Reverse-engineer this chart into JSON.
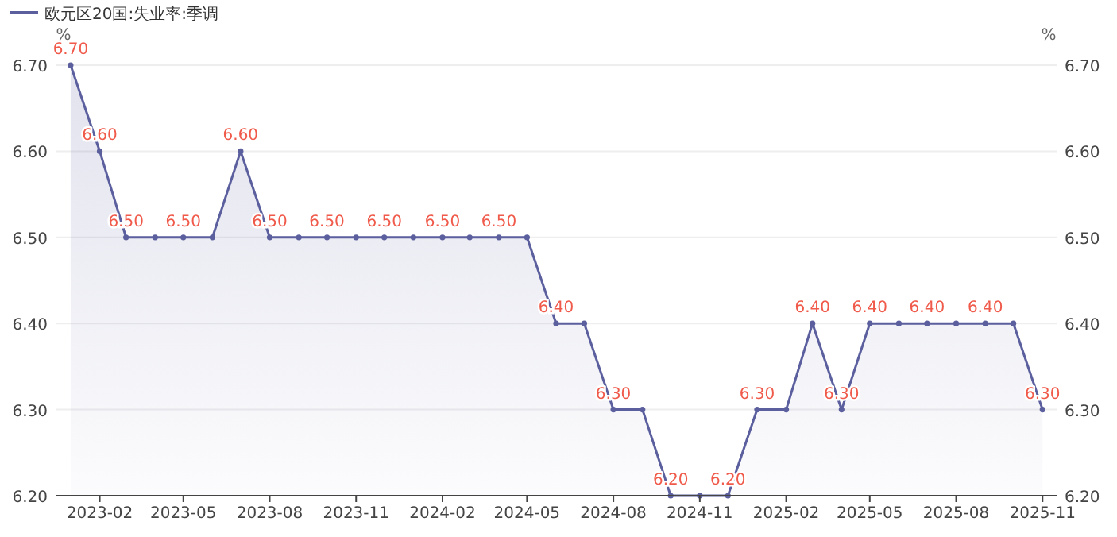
{
  "chart_data": {
    "type": "area",
    "legend": "top left",
    "ylabel": "%",
    "y2label": "%",
    "x": [
      "2023-01",
      "2023-02",
      "2023-03",
      "2023-04",
      "2023-05",
      "2023-06",
      "2023-07",
      "2023-08",
      "2023-09",
      "2023-10",
      "2023-11",
      "2023-12",
      "2024-01",
      "2024-02",
      "2024-03",
      "2024-04",
      "2024-05",
      "2024-06",
      "2024-07",
      "2024-08",
      "2024-09",
      "2024-10",
      "2024-11",
      "2024-12",
      "2025-01",
      "2025-02",
      "2025-03",
      "2025-04",
      "2025-05",
      "2025-06",
      "2025-07",
      "2025-08",
      "2025-09",
      "2025-10",
      "2025-11"
    ],
    "series": [
      {
        "name": "欧元区20国:失业率:季调",
        "color": "#5b5f9e",
        "values": [
          6.7,
          6.6,
          6.5,
          6.5,
          6.5,
          6.5,
          6.6,
          6.5,
          6.5,
          6.5,
          6.5,
          6.5,
          6.5,
          6.5,
          6.5,
          6.5,
          6.5,
          6.4,
          6.4,
          6.3,
          6.3,
          6.2,
          6.2,
          6.2,
          6.3,
          6.3,
          6.4,
          6.3,
          6.4,
          6.4,
          6.4,
          6.4,
          6.4,
          6.4,
          6.3
        ],
        "value_labels": [
          "6.70",
          "6.60",
          "6.50",
          null,
          "6.50",
          null,
          "6.60",
          "6.50",
          null,
          "6.50",
          null,
          "6.50",
          null,
          "6.50",
          null,
          "6.50",
          null,
          "6.40",
          null,
          "6.30",
          null,
          "6.20",
          null,
          "6.20",
          "6.30",
          null,
          "6.40",
          "6.30",
          "6.40",
          null,
          "6.40",
          null,
          "6.40",
          null,
          "6.30"
        ]
      }
    ],
    "xlim": [
      "2022-12-16",
      "2025-11-16"
    ],
    "xticks": [
      "2023-02",
      "2023-05",
      "2023-08",
      "2023-11",
      "2024-02",
      "2024-05",
      "2024-08",
      "2024-11",
      "2025-02",
      "2025-05",
      "2025-08",
      "2025-11"
    ],
    "ylim": [
      6.2,
      6.7
    ],
    "yticks": [
      {
        "value": 6.2,
        "label": "6.20"
      },
      {
        "value": 6.3,
        "label": "6.30"
      },
      {
        "value": 6.4,
        "label": "6.40"
      },
      {
        "value": 6.5,
        "label": "6.50"
      },
      {
        "value": 6.6,
        "label": "6.60"
      },
      {
        "value": 6.7,
        "label": "6.70"
      }
    ],
    "y2lim": [
      6.2,
      6.7
    ],
    "y2ticks": [
      {
        "value": 6.2,
        "label": "6.20"
      },
      {
        "value": 6.3,
        "label": "6.30"
      },
      {
        "value": 6.4,
        "label": "6.40"
      },
      {
        "value": 6.5,
        "label": "6.50"
      },
      {
        "value": 6.6,
        "label": "6.60"
      },
      {
        "value": 6.7,
        "label": "6.70"
      }
    ],
    "grid": "y",
    "marker": "circle",
    "line_style": "solid"
  }
}
